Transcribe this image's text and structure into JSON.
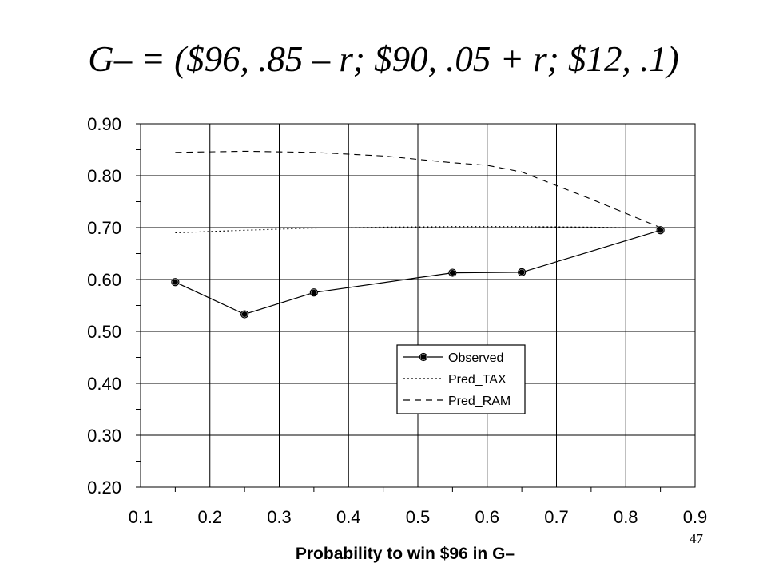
{
  "slide": {
    "title": "G– = ($96, .85 – r; $90, .05 + r; $12, .1)",
    "page_number": "47"
  },
  "chart_data": {
    "type": "line",
    "xlabel": "Probability to win $96 in G–",
    "ylabel": "",
    "xlim": [
      0.1,
      0.9
    ],
    "ylim": [
      0.2,
      0.9
    ],
    "x_ticks": [
      "0.1",
      "0.2",
      "0.3",
      "0.4",
      "0.5",
      "0.6",
      "0.7",
      "0.8",
      "0.9"
    ],
    "y_ticks": [
      "0.20",
      "0.30",
      "0.40",
      "0.50",
      "0.60",
      "0.70",
      "0.80",
      "0.90"
    ],
    "grid": true,
    "legend_position": "bottom-right",
    "series": [
      {
        "name": "Observed",
        "style": "solid",
        "markers": true,
        "x": [
          0.15,
          0.25,
          0.35,
          0.55,
          0.65,
          0.85
        ],
        "y": [
          0.595,
          0.533,
          0.575,
          0.613,
          0.614,
          0.695
        ]
      },
      {
        "name": "Pred_TAX",
        "style": "dotted",
        "markers": false,
        "x": [
          0.15,
          0.25,
          0.35,
          0.45,
          0.55,
          0.65,
          0.75,
          0.85
        ],
        "y": [
          0.69,
          0.695,
          0.699,
          0.701,
          0.702,
          0.702,
          0.701,
          0.699
        ]
      },
      {
        "name": "Pred_RAM",
        "style": "dashed",
        "markers": false,
        "x": [
          0.15,
          0.25,
          0.35,
          0.45,
          0.55,
          0.6,
          0.65,
          0.75,
          0.85
        ],
        "y": [
          0.845,
          0.847,
          0.845,
          0.838,
          0.825,
          0.82,
          0.807,
          0.755,
          0.7
        ]
      }
    ],
    "colors": {
      "line": "#000000",
      "grid": "#000000",
      "background": "#ffffff"
    }
  }
}
